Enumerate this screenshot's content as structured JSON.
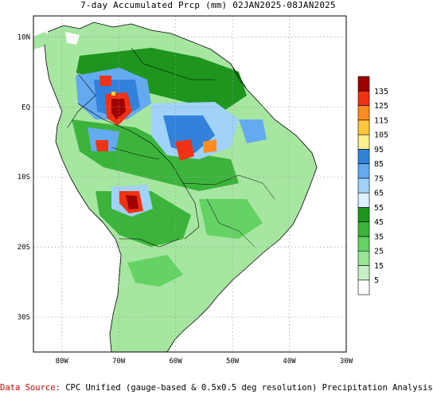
{
  "title": "7-day Accumulated Prcp (mm) 02JAN2025-08JAN2025",
  "footer": {
    "source_label": "Data Source:",
    "source_text": "CPC Unified (gauge-based & 0.5x0.5 deg resolution) Precipitation Analysis"
  },
  "axes": {
    "lon_labels": [
      "80W",
      "70W",
      "60W",
      "50W",
      "40W",
      "30W"
    ],
    "lat_labels": [
      "10N",
      "EQ",
      "10S",
      "20S",
      "30S"
    ],
    "lon_range": [
      -85,
      -30
    ],
    "lat_range": [
      -35,
      13
    ]
  },
  "colorbar": {
    "labels": [
      "5",
      "15",
      "25",
      "35",
      "45",
      "55",
      "65",
      "75",
      "85",
      "95",
      "105",
      "115",
      "125",
      "135"
    ],
    "colors": [
      "#ffffff",
      "#c8f0c8",
      "#96e696",
      "#64d264",
      "#3cb43c",
      "#1e961e",
      "#dcf0ff",
      "#a0d2fa",
      "#64aaf0",
      "#3282dc",
      "#fff08c",
      "#ffc83c",
      "#ff8c1e",
      "#f03214",
      "#a00000"
    ]
  },
  "colors": {
    "land": "#a6e6a0",
    "ocean": "#ffffff",
    "grid": "#9a9a9a"
  }
}
